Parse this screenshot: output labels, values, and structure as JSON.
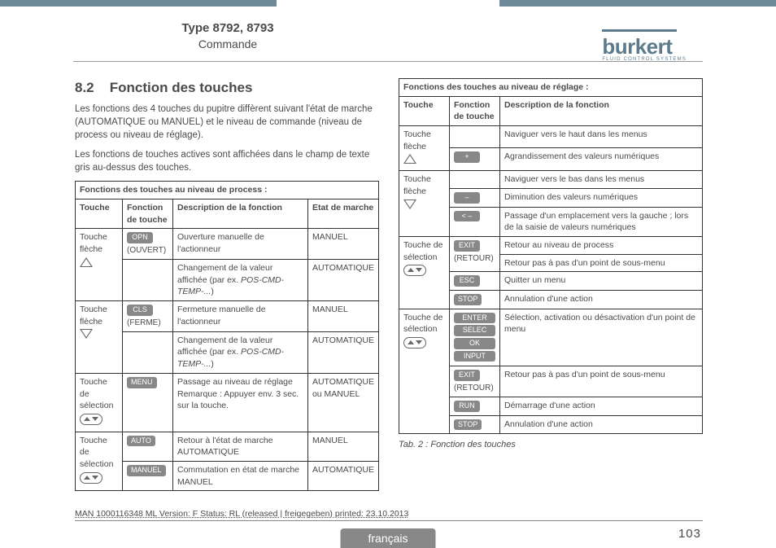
{
  "header": {
    "type_line": "Type 8792, 8793",
    "subtitle": "Commande",
    "logo_name": "burkert",
    "logo_tagline": "FLUID CONTROL SYSTEMS"
  },
  "section": {
    "number": "8.2",
    "title": "Fonction des touches",
    "para1": "Les fonctions des 4 touches du pupitre diffèrent suivant l'état de marche (AUTOMATIQUE ou MANUEL) et le niveau de commande (niveau de process ou niveau de réglage).",
    "para2": "Les fonctions de touches actives sont affichées dans le champ de texte gris au-dessus des touches."
  },
  "left_table": {
    "title": "Fonctions des touches au niveau de process :",
    "headers": {
      "c1": "Touche",
      "c2": "Fonction de touche",
      "c3": "Description de la fonction",
      "c4": "Etat de marche"
    },
    "rows": [
      {
        "touche": "Touche flèche",
        "icon": "up",
        "badge": "OPN",
        "sublabel": "(OUVERT)",
        "desc": "Ouverture manuelle de l'actionneur",
        "etat": "MANUEL"
      },
      {
        "desc_pre": "Changement de la valeur affichée (par ex. ",
        "desc_em": "POS-CMD-TEMP-...",
        "desc_post": ")",
        "etat": "AUTOMATIQUE"
      },
      {
        "touche": "Touche flèche",
        "icon": "down",
        "badge": "CLS",
        "sublabel": "(FERME)",
        "desc": "Fermeture manuelle de l'actionneur",
        "etat": "MANUEL"
      },
      {
        "desc_pre": "Changement de la valeur affichée (par ex. ",
        "desc_em": "POS-CMD-TEMP-...",
        "desc_post": ")",
        "etat": "AUTOMATIQUE"
      },
      {
        "touche": "Touche de sélection",
        "icon": "sel",
        "badge": "MENU",
        "desc": "Passage au niveau de réglage Remarque : Appuyer env. 3 sec. sur la touche.",
        "etat": "AUTOMATIQUE ou MANUEL"
      },
      {
        "touche": "Touche de sélection",
        "icon": "sel",
        "badge": "AUTO",
        "desc": "Retour à l'état de marche AUTOMATIQUE",
        "etat": "MANUEL"
      },
      {
        "badge": "MANUEL",
        "desc": "Commutation en état de marche MANUEL",
        "etat": "AUTOMATIQUE"
      }
    ]
  },
  "right_table": {
    "title": "Fonctions des touches au niveau de réglage :",
    "headers": {
      "c1": "Touche",
      "c2": "Fonction de touche",
      "c3": "Description de la fonction"
    },
    "rows": [
      {
        "touche": "Touche flèche",
        "icon": "up",
        "desc": "Naviguer vers le haut dans les menus"
      },
      {
        "badge": "+",
        "desc": "Agrandissement des valeurs numériques"
      },
      {
        "touche": "Touche flèche",
        "icon": "down",
        "desc": "Naviguer vers le bas dans les menus"
      },
      {
        "badge": "–",
        "desc": "Diminution des valeurs numériques"
      },
      {
        "badge": "< –",
        "desc": "Passage d'un emplacement vers la gauche ; lors de la saisie de valeurs numériques"
      },
      {
        "touche": "Touche de sélection",
        "icon": "sel",
        "badge": "EXIT",
        "sublabel": "(RETOUR)",
        "desc": "Retour au niveau de process"
      },
      {
        "desc": "Retour pas à pas d'un point de sous-menu"
      },
      {
        "badge": "ESC",
        "desc": "Quitter un menu"
      },
      {
        "badge": "STOP",
        "desc": "Annulation d'une action"
      },
      {
        "touche": "Touche de sélection",
        "icon": "sel",
        "badges": [
          "ENTER",
          "SELEC",
          "OK",
          "INPUT"
        ],
        "desc": "Sélection, activation ou désactivation d'un point de menu"
      },
      {
        "badge": "EXIT",
        "sublabel": "(RETOUR)",
        "desc": "Retour pas à pas d'un point de sous-menu"
      },
      {
        "badge": "RUN",
        "desc": "Démarrage d'une action"
      },
      {
        "badge": "STOP",
        "desc": "Annulation d'une action"
      }
    ],
    "caption": "Tab. 2 :    Fonction des touches"
  },
  "footer": {
    "docline": "MAN 1000116348 ML Version: F Status: RL (released | freigegeben) printed: 23.10.2013",
    "language": "français",
    "page": "103"
  },
  "colors": {
    "accent": "#6f8a9b",
    "logo": "#5d7a8c",
    "badge_bg": "#888888",
    "text": "#4a4a4a",
    "border": "#333333"
  }
}
